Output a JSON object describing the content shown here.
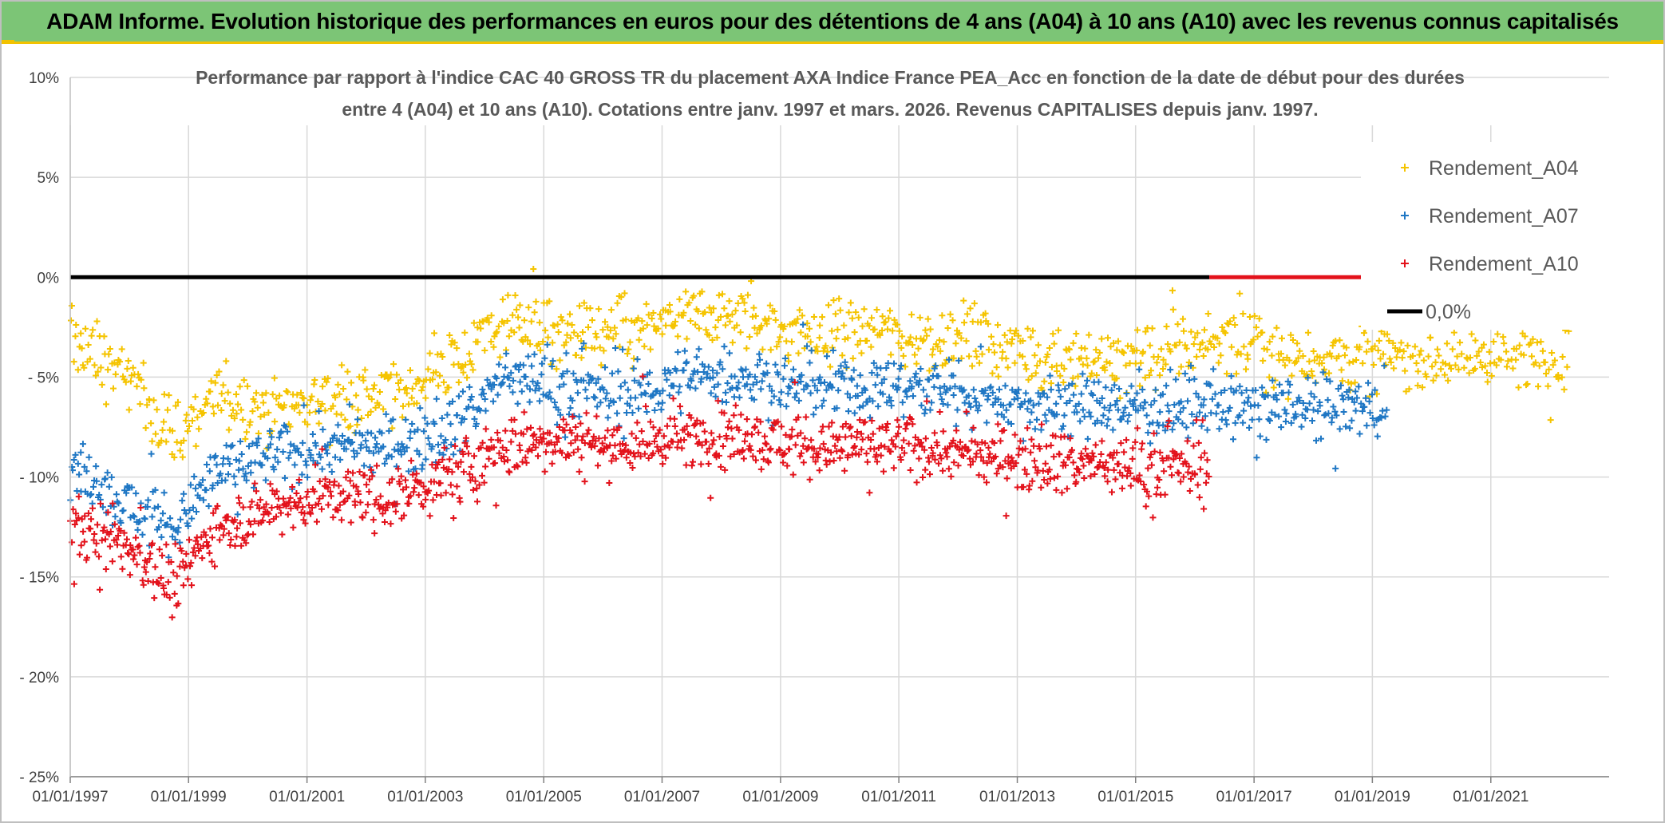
{
  "header": {
    "title": "ADAM Informe. Evolution historique des performances en euros pour des détentions de 4 ans (A04) à 10 ans (A10) avec les revenus connus capitalisés"
  },
  "colors": {
    "header_bg": "#7cc576",
    "accent": "#f2c200",
    "a04": "#f5c400",
    "a07": "#1f77c4",
    "a10": "#e3121b",
    "zero_line": "#000000"
  },
  "chart_data": {
    "type": "scatter",
    "title_lines": [
      "Performance par rapport à l'indice CAC 40 GROSS TR  du placement AXA Indice France PEA_Acc en fonction de la date de début pour des durées",
      "entre 4 (A04) et 10 ans (A10). Cotations entre janv. 1997 et mars. 2026. Revenus CAPITALISES depuis janv. 1997."
    ],
    "x_range": [
      "1997-01-01",
      "2023-01-01"
    ],
    "x_ticks": [
      "01/01/1997",
      "01/01/1999",
      "01/01/2001",
      "01/01/2003",
      "01/01/2005",
      "01/01/2007",
      "01/01/2009",
      "01/01/2011",
      "01/01/2013",
      "01/01/2015",
      "01/01/2017",
      "01/01/2019",
      "01/01/2021"
    ],
    "y_range": [
      -0.25,
      0.1
    ],
    "y_ticks": [
      {
        "value": 0.1,
        "label": "10%"
      },
      {
        "value": 0.05,
        "label": "5%"
      },
      {
        "value": 0.0,
        "label": "0%"
      },
      {
        "value": -0.05,
        "label": "- 5%"
      },
      {
        "value": -0.1,
        "label": "- 10%"
      },
      {
        "value": -0.15,
        "label": "- 15%"
      },
      {
        "value": -0.2,
        "label": "- 20%"
      },
      {
        "value": -0.25,
        "label": "- 25%"
      }
    ],
    "grid": true,
    "marker": "plus",
    "legend_position": "top-right",
    "legend": [
      "Rendement_A04",
      "Rendement_A07",
      "Rendement_A10",
      "0,0%"
    ],
    "series": [
      {
        "name": "Rendement_A04",
        "date_range": [
          "1997-01-01",
          "2022-04-30"
        ],
        "trend": [
          [
            "1997-01-01",
            -0.03
          ],
          [
            "1998-01-01",
            -0.05
          ],
          [
            "1998-10-01",
            -0.08
          ],
          [
            "1999-06-01",
            -0.06
          ],
          [
            "2000-06-01",
            -0.065
          ],
          [
            "2001-06-01",
            -0.06
          ],
          [
            "2002-06-01",
            -0.06
          ],
          [
            "2003-06-01",
            -0.045
          ],
          [
            "2004-06-01",
            -0.02
          ],
          [
            "2005-06-01",
            -0.03
          ],
          [
            "2006-06-01",
            -0.03
          ],
          [
            "2007-06-01",
            -0.02
          ],
          [
            "2008-06-01",
            -0.02
          ],
          [
            "2009-06-01",
            -0.03
          ],
          [
            "2010-06-01",
            -0.025
          ],
          [
            "2011-06-01",
            -0.03
          ],
          [
            "2012-06-01",
            -0.03
          ],
          [
            "2013-06-01",
            -0.04
          ],
          [
            "2014-06-01",
            -0.04
          ],
          [
            "2015-06-01",
            -0.04
          ],
          [
            "2016-06-01",
            -0.03
          ],
          [
            "2017-06-01",
            -0.04
          ],
          [
            "2018-06-01",
            -0.04
          ],
          [
            "2019-06-01",
            -0.04
          ],
          [
            "2020-06-01",
            -0.04
          ],
          [
            "2021-06-01",
            -0.04
          ],
          [
            "2022-04-30",
            -0.04
          ]
        ],
        "spread": 0.013
      },
      {
        "name": "Rendement_A07",
        "date_range": [
          "1997-01-01",
          "2019-03-31"
        ],
        "trend": [
          [
            "1997-01-01",
            -0.095
          ],
          [
            "1998-01-01",
            -0.115
          ],
          [
            "1998-10-01",
            -0.125
          ],
          [
            "1999-06-01",
            -0.1
          ],
          [
            "2000-06-01",
            -0.09
          ],
          [
            "2001-06-01",
            -0.085
          ],
          [
            "2002-06-01",
            -0.085
          ],
          [
            "2003-06-01",
            -0.075
          ],
          [
            "2004-06-01",
            -0.05
          ],
          [
            "2005-06-01",
            -0.055
          ],
          [
            "2006-06-01",
            -0.06
          ],
          [
            "2007-06-01",
            -0.05
          ],
          [
            "2008-06-01",
            -0.05
          ],
          [
            "2009-06-01",
            -0.055
          ],
          [
            "2010-06-01",
            -0.055
          ],
          [
            "2011-06-01",
            -0.055
          ],
          [
            "2012-06-01",
            -0.06
          ],
          [
            "2013-06-01",
            -0.065
          ],
          [
            "2014-06-01",
            -0.065
          ],
          [
            "2015-06-01",
            -0.065
          ],
          [
            "2016-06-01",
            -0.065
          ],
          [
            "2017-06-01",
            -0.065
          ],
          [
            "2018-06-01",
            -0.065
          ],
          [
            "2019-03-31",
            -0.065
          ]
        ],
        "spread": 0.012
      },
      {
        "name": "Rendement_A10",
        "date_range": [
          "1997-01-01",
          "2016-03-31"
        ],
        "trend": [
          [
            "1997-01-01",
            -0.125
          ],
          [
            "1998-01-01",
            -0.135
          ],
          [
            "1998-10-01",
            -0.155
          ],
          [
            "1999-06-01",
            -0.125
          ],
          [
            "2000-06-01",
            -0.115
          ],
          [
            "2001-06-01",
            -0.11
          ],
          [
            "2002-06-01",
            -0.11
          ],
          [
            "2003-06-01",
            -0.1
          ],
          [
            "2004-06-01",
            -0.085
          ],
          [
            "2005-06-01",
            -0.08
          ],
          [
            "2006-06-01",
            -0.085
          ],
          [
            "2007-06-01",
            -0.08
          ],
          [
            "2008-06-01",
            -0.08
          ],
          [
            "2009-06-01",
            -0.085
          ],
          [
            "2010-06-01",
            -0.085
          ],
          [
            "2011-06-01",
            -0.085
          ],
          [
            "2012-06-01",
            -0.09
          ],
          [
            "2013-06-01",
            -0.09
          ],
          [
            "2014-06-01",
            -0.095
          ],
          [
            "2015-06-01",
            -0.095
          ],
          [
            "2016-03-31",
            -0.095
          ]
        ],
        "spread": 0.012
      },
      {
        "name": "0,0%",
        "type": "line",
        "y": 0.0,
        "segments": [
          {
            "from": "1997-01-01",
            "to": "2016-03-31",
            "color": "#000000"
          },
          {
            "from": "2016-03-31",
            "to": "2019-04-30",
            "color": "#e3121b"
          }
        ]
      }
    ]
  }
}
